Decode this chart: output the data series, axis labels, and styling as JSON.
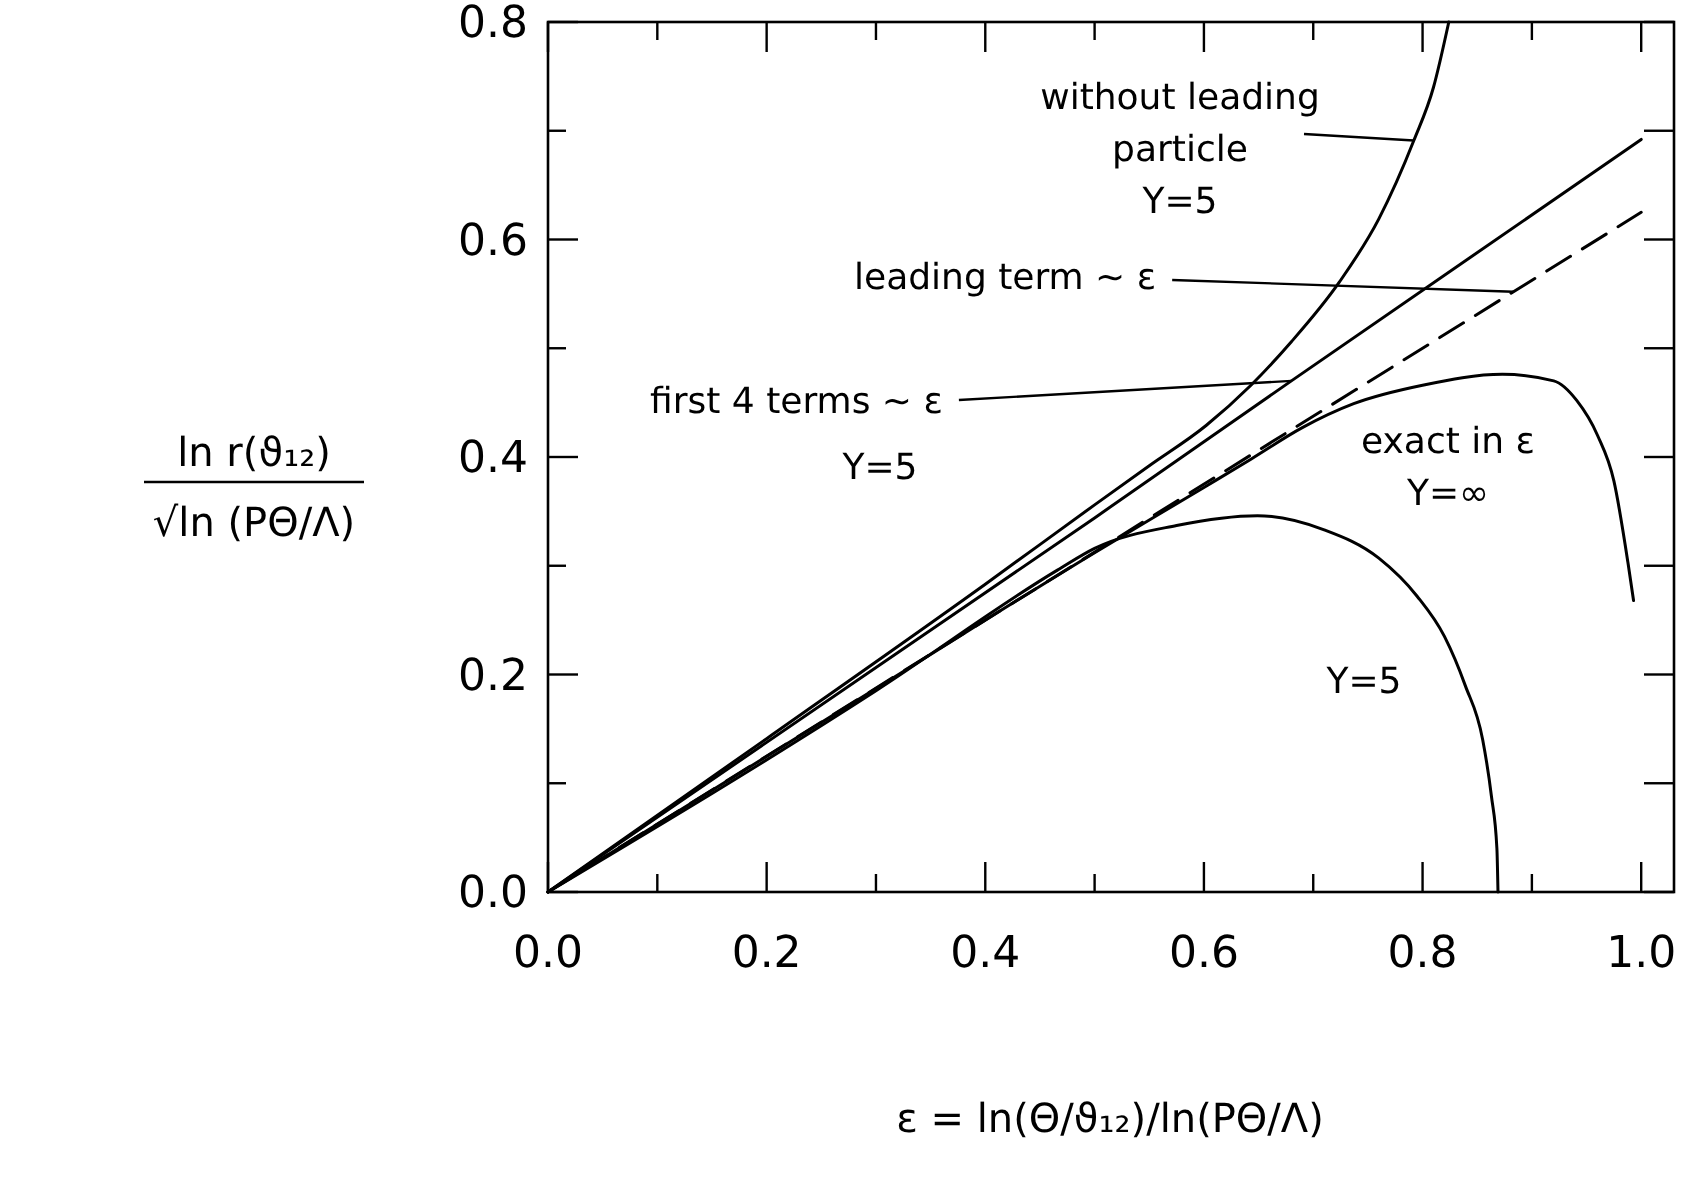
{
  "chart_data": {
    "type": "line",
    "xlabel": "ε = ln(Θ/ϑ₁₂)/ln(PΘ/Λ)",
    "ylabel": "ln r(ϑ₁₂)\n√ln (PΘ/Λ)",
    "xlim": [
      0,
      1.03
    ],
    "ylim": [
      0,
      0.8
    ],
    "xticks": [
      {
        "value": 0,
        "label": "0.0"
      },
      {
        "value": 0.1,
        "label": null
      },
      {
        "value": 0.2,
        "label": "0.2"
      },
      {
        "value": 0.3,
        "label": null
      },
      {
        "value": 0.4,
        "label": "0.4"
      },
      {
        "value": 0.5,
        "label": null
      },
      {
        "value": 0.6,
        "label": "0.6"
      },
      {
        "value": 0.7,
        "label": null
      },
      {
        "value": 0.8,
        "label": "0.8"
      },
      {
        "value": 0.9,
        "label": null
      },
      {
        "value": 1,
        "label": "1.0"
      }
    ],
    "yticks": [
      {
        "value": 0,
        "label": "0.0"
      },
      {
        "value": 0.1,
        "label": null
      },
      {
        "value": 0.2,
        "label": "0.2"
      },
      {
        "value": 0.3,
        "label": null
      },
      {
        "value": 0.4,
        "label": "0.4"
      },
      {
        "value": 0.5,
        "label": null
      },
      {
        "value": 0.6,
        "label": "0.6"
      },
      {
        "value": 0.7,
        "label": null
      },
      {
        "value": 0.8,
        "label": "0.8"
      }
    ],
    "grid": false,
    "marker": "none",
    "series": [
      {
        "color": "#000000",
        "line_style": "solid",
        "x": [
          0,
          0.2,
          0.4,
          0.5,
          0.55,
          0.602,
          0.643,
          0.68,
          0.724,
          0.76,
          0.792,
          0.81,
          0.824
        ],
        "values": [
          0,
          0.141,
          0.283,
          0.356,
          0.392,
          0.429,
          0.466,
          0.506,
          0.561,
          0.619,
          0.691,
          0.74,
          0.8
        ]
      },
      {
        "color": "#000000",
        "line_style": "solid",
        "x": [
          0,
          0.5,
          0.68,
          1.0
        ],
        "values": [
          0,
          0.344,
          0.47,
          0.692
        ]
      },
      {
        "color": "#000000",
        "line_style": "dashed",
        "x": [
          0,
          1.0
        ],
        "values": [
          0,
          0.625
        ]
      },
      {
        "color": "#000000",
        "line_style": "solid",
        "x": [
          0,
          0.3,
          0.5,
          0.6,
          0.643,
          0.69,
          0.737,
          0.8,
          0.873,
          0.92,
          0.941,
          0.96,
          0.975,
          0.988,
          0.993
        ],
        "values": [
          0,
          0.187,
          0.312,
          0.372,
          0.398,
          0.427,
          0.449,
          0.466,
          0.476,
          0.47,
          0.452,
          0.42,
          0.378,
          0.302,
          0.268
        ]
      },
      {
        "color": "#000000",
        "line_style": "solid",
        "x": [
          0,
          0.3,
          0.466,
          0.5,
          0.575,
          0.649,
          0.71,
          0.76,
          0.795,
          0.82,
          0.839,
          0.855,
          0.863,
          0.868,
          0.869
        ],
        "values": [
          0,
          0.185,
          0.296,
          0.316,
          0.337,
          0.346,
          0.333,
          0.307,
          0.272,
          0.235,
          0.19,
          0.14,
          0.088,
          0.04,
          0
        ]
      }
    ],
    "annotations": [
      {
        "text": "without leading\nparticle\nY=5",
        "x": 0.792,
        "y": 0.691
      },
      {
        "text": "leading term ~ ε",
        "x": 0.883,
        "y": 0.552
      },
      {
        "text": "first 4 terms ~ ε\nY=5",
        "x": 0.68,
        "y": 0.47
      },
      "exact in ε\nY=∞",
      "Y=5"
    ]
  }
}
